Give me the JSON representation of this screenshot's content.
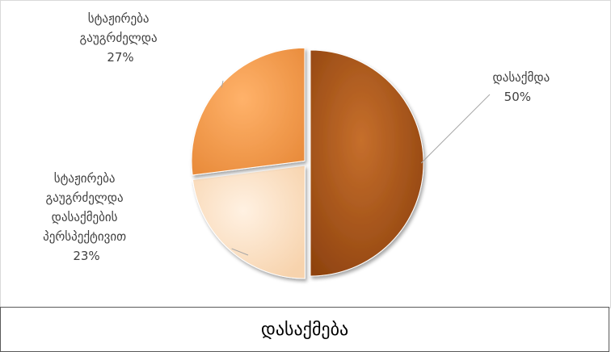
{
  "chart_data": {
    "type": "pie",
    "title": "",
    "slices": [
      {
        "label": "დასაქმდა",
        "value": 50,
        "pct": "50%",
        "color": "#b55c1c"
      },
      {
        "label": "სტაჟირება გაუგრძელდა დასაქმების პერსპექტივით",
        "value": 23,
        "pct": "23%",
        "color": "#fbe2c9"
      },
      {
        "label": "სტაჟირება გაუგრძელდა",
        "value": 27,
        "pct": "27%",
        "color": "#f6a55b"
      }
    ]
  },
  "footer": {
    "title": "დასაქმება"
  }
}
